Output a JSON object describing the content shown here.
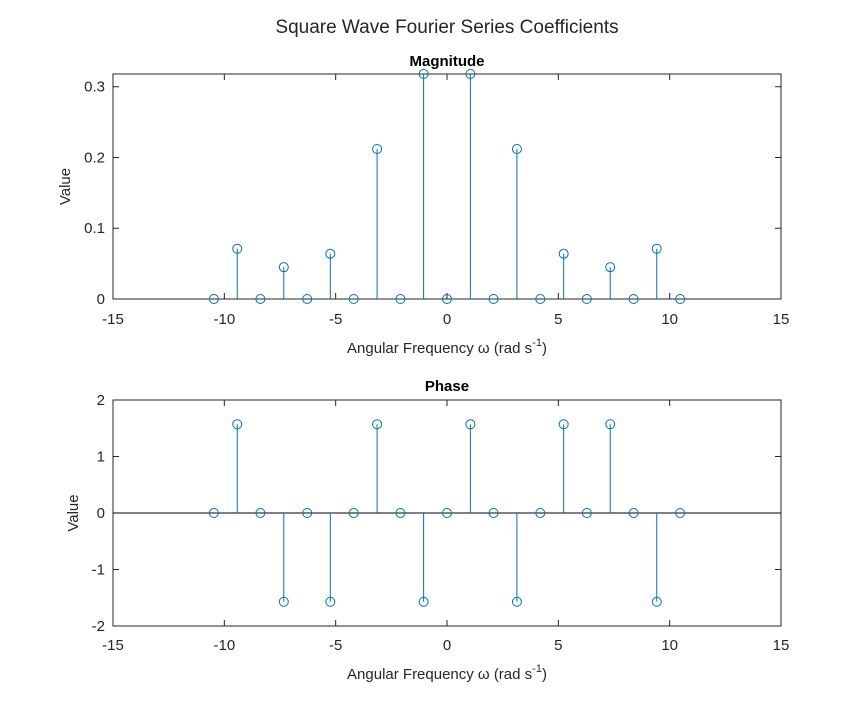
{
  "figure": {
    "title": "Square Wave Fourier Series Coefficients",
    "stem_color": "#0072BD",
    "axes_color": "#262626",
    "baseline_color": "#000000"
  },
  "chart_data": [
    {
      "type": "stem",
      "title": "Magnitude",
      "xlabel": "Angular Frequency ω (rad s",
      "xlabel_superscript": "-1",
      "xlabel_suffix": ")",
      "ylabel": "Value",
      "xlim": [
        -15,
        15
      ],
      "ylim": [
        0,
        0.318
      ],
      "xticks": [
        -15,
        -10,
        -5,
        0,
        5,
        10,
        15
      ],
      "xtick_labels": [
        "-15",
        "-10",
        "-5",
        "0",
        "5",
        "10",
        "15"
      ],
      "yticks": [
        0,
        0.1,
        0.2,
        0.3
      ],
      "ytick_labels": [
        "0",
        "0.1",
        "0.2",
        "0.3"
      ],
      "grid": false,
      "x": [
        -10.47,
        -9.42,
        -8.38,
        -7.33,
        -6.28,
        -5.24,
        -4.19,
        -3.14,
        -2.09,
        -1.05,
        0,
        1.05,
        2.09,
        3.14,
        4.19,
        5.24,
        6.28,
        7.33,
        8.38,
        9.42,
        10.47
      ],
      "values": [
        0,
        0.071,
        0,
        0.045,
        0,
        0.064,
        0,
        0.212,
        0,
        0.318,
        0,
        0.318,
        0,
        0.212,
        0,
        0.064,
        0,
        0.045,
        0,
        0.071,
        0
      ]
    },
    {
      "type": "stem",
      "title": "Phase",
      "xlabel": "Angular Frequency ω (rad s",
      "xlabel_superscript": "-1",
      "xlabel_suffix": ")",
      "ylabel": "Value",
      "xlim": [
        -15,
        15
      ],
      "ylim": [
        -2,
        2
      ],
      "xticks": [
        -15,
        -10,
        -5,
        0,
        5,
        10,
        15
      ],
      "xtick_labels": [
        "-15",
        "-10",
        "-5",
        "0",
        "5",
        "10",
        "15"
      ],
      "yticks": [
        -2,
        -1,
        0,
        1,
        2
      ],
      "ytick_labels": [
        "-2",
        "-1",
        "0",
        "1",
        "2"
      ],
      "grid": false,
      "baseline": 0,
      "x": [
        -10.47,
        -9.42,
        -8.38,
        -7.33,
        -6.28,
        -5.24,
        -4.19,
        -3.14,
        -2.09,
        -1.05,
        0,
        1.05,
        2.09,
        3.14,
        4.19,
        5.24,
        6.28,
        7.33,
        8.38,
        9.42,
        10.47
      ],
      "values": [
        0,
        1.571,
        0,
        -1.571,
        0,
        -1.571,
        0,
        1.571,
        0,
        -1.571,
        0,
        1.571,
        0,
        -1.571,
        0,
        1.571,
        0,
        1.571,
        0,
        -1.571,
        0
      ]
    }
  ]
}
